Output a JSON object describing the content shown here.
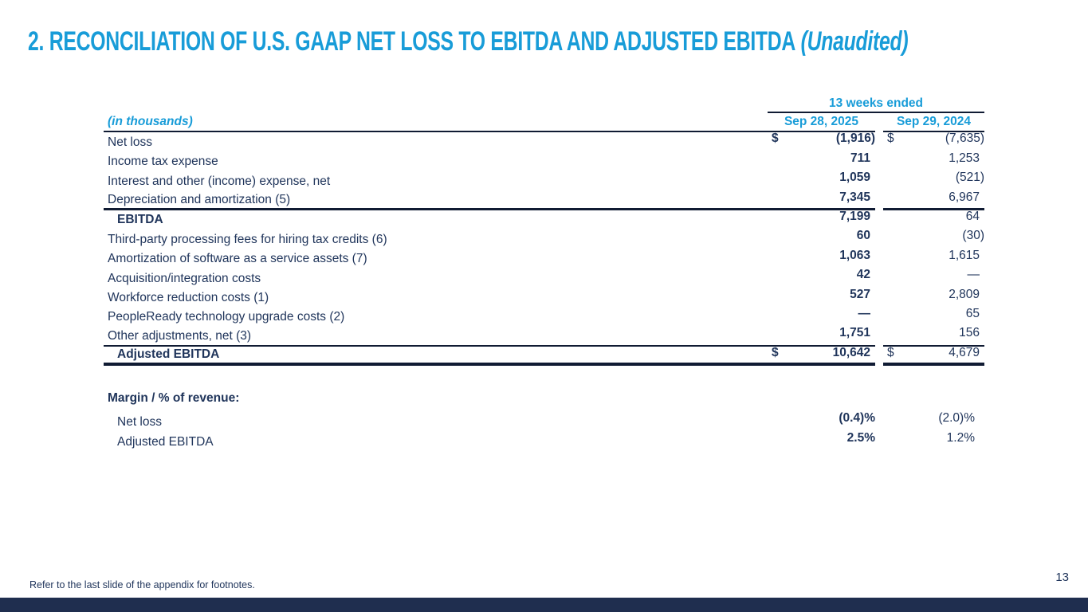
{
  "slide": {
    "title": "2. RECONCILIATION OF U.S. GAAP NET LOSS TO EBITDA AND ADJUSTED EBITDA",
    "title_suffix": "(Unaudited)",
    "footnote": "Refer to the last slide of the appendix for footnotes.",
    "page_number": "13"
  },
  "colors": {
    "accent_blue": "#189CD8",
    "navy_text": "#20355B",
    "rule": "#101B33",
    "footer_bar": "#1F2E4F"
  },
  "table": {
    "period_header": "13 weeks ended",
    "units_label": "(in thousands)",
    "columns": [
      "Sep 28, 2025",
      "Sep 29, 2024"
    ],
    "rows": [
      {
        "label": "Net loss",
        "dollar": true,
        "v2025": "(1,916)",
        "v2024": "(7,635)",
        "bold_label": false,
        "indent": false,
        "rule_below": ""
      },
      {
        "label": "Income tax expense",
        "dollar": false,
        "v2025": "711",
        "v2024": "1,253",
        "bold_label": false,
        "indent": false,
        "rule_below": ""
      },
      {
        "label": "Interest and other (income) expense, net",
        "dollar": false,
        "v2025": "1,059",
        "v2024": "(521)",
        "bold_label": false,
        "indent": false,
        "rule_below": ""
      },
      {
        "label": "Depreciation and amortization (5)",
        "dollar": false,
        "v2025": "7,345",
        "v2024": "6,967",
        "bold_label": false,
        "indent": false,
        "rule_below": "medium"
      },
      {
        "label": "EBITDA",
        "dollar": false,
        "v2025": "7,199",
        "v2024": "64",
        "bold_label": true,
        "indent": true,
        "rule_below": ""
      },
      {
        "label": "Third-party processing fees for hiring tax credits (6)",
        "dollar": false,
        "v2025": "60",
        "v2024": "(30)",
        "bold_label": false,
        "indent": false,
        "rule_below": ""
      },
      {
        "label": "Amortization of software as a service assets (7)",
        "dollar": false,
        "v2025": "1,063",
        "v2024": "1,615",
        "bold_label": false,
        "indent": false,
        "rule_below": ""
      },
      {
        "label": "Acquisition/integration costs",
        "dollar": false,
        "v2025": "42",
        "v2024": "—",
        "bold_label": false,
        "indent": false,
        "rule_below": ""
      },
      {
        "label": "Workforce reduction costs (1)",
        "dollar": false,
        "v2025": "527",
        "v2024": "2,809",
        "bold_label": false,
        "indent": false,
        "rule_below": ""
      },
      {
        "label": "PeopleReady technology upgrade costs (2)",
        "dollar": false,
        "v2025": "—",
        "v2024": "65",
        "bold_label": false,
        "indent": false,
        "rule_below": ""
      },
      {
        "label": "Other adjustments, net (3)",
        "dollar": false,
        "v2025": "1,751",
        "v2024": "156",
        "bold_label": false,
        "indent": false,
        "rule_below": "thin"
      },
      {
        "label": "Adjusted EBITDA",
        "dollar": true,
        "v2025": "10,642",
        "v2024": "4,679",
        "bold_label": true,
        "indent": true,
        "rule_below": "thick"
      }
    ]
  },
  "margin_section": {
    "heading": "Margin / % of revenue:",
    "rows": [
      {
        "label": "Net loss",
        "v2025": "(0.4)%",
        "v2024": "(2.0)%"
      },
      {
        "label": "Adjusted EBITDA",
        "v2025": "2.5%",
        "v2024": "1.2%"
      }
    ]
  }
}
